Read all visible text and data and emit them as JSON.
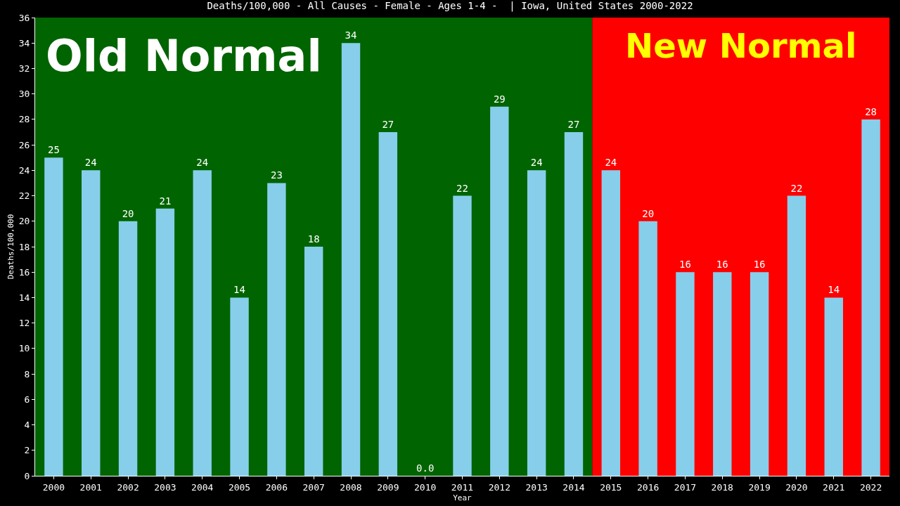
{
  "chart_data": {
    "type": "bar",
    "title": "Deaths/100,000 - All Causes - Female - Ages 1-4 -  | Iowa, United States 2000-2022",
    "xlabel": "Year",
    "ylabel": "Deaths/100,000",
    "categories": [
      "2000",
      "2001",
      "2002",
      "2003",
      "2004",
      "2005",
      "2006",
      "2007",
      "2008",
      "2009",
      "2010",
      "2011",
      "2012",
      "2013",
      "2014",
      "2015",
      "2016",
      "2017",
      "2018",
      "2019",
      "2020",
      "2021",
      "2022"
    ],
    "values": [
      25,
      24,
      20,
      21,
      24,
      14,
      23,
      18,
      34,
      27,
      0.0,
      22,
      29,
      24,
      27,
      24,
      20,
      16,
      16,
      16,
      22,
      14,
      28
    ],
    "value_labels": [
      "25",
      "24",
      "20",
      "21",
      "24",
      "14",
      "23",
      "18",
      "34",
      "27",
      "0.0",
      "22",
      "29",
      "24",
      "27",
      "24",
      "20",
      "16",
      "16",
      "16",
      "22",
      "14",
      "28"
    ],
    "color": "#87ceeb",
    "ylim": [
      0,
      36
    ],
    "yticks": [
      0,
      2,
      4,
      6,
      8,
      10,
      12,
      14,
      16,
      18,
      20,
      22,
      24,
      26,
      28,
      30,
      32,
      34,
      36
    ],
    "grid": false,
    "bands": [
      {
        "axis": "x",
        "from": "2000",
        "to": "2014",
        "label": "Old Normal",
        "color": "#006400"
      },
      {
        "axis": "x",
        "from": "2015",
        "to": "2022",
        "label": "New Normal",
        "color": "#ff0000"
      }
    ]
  }
}
